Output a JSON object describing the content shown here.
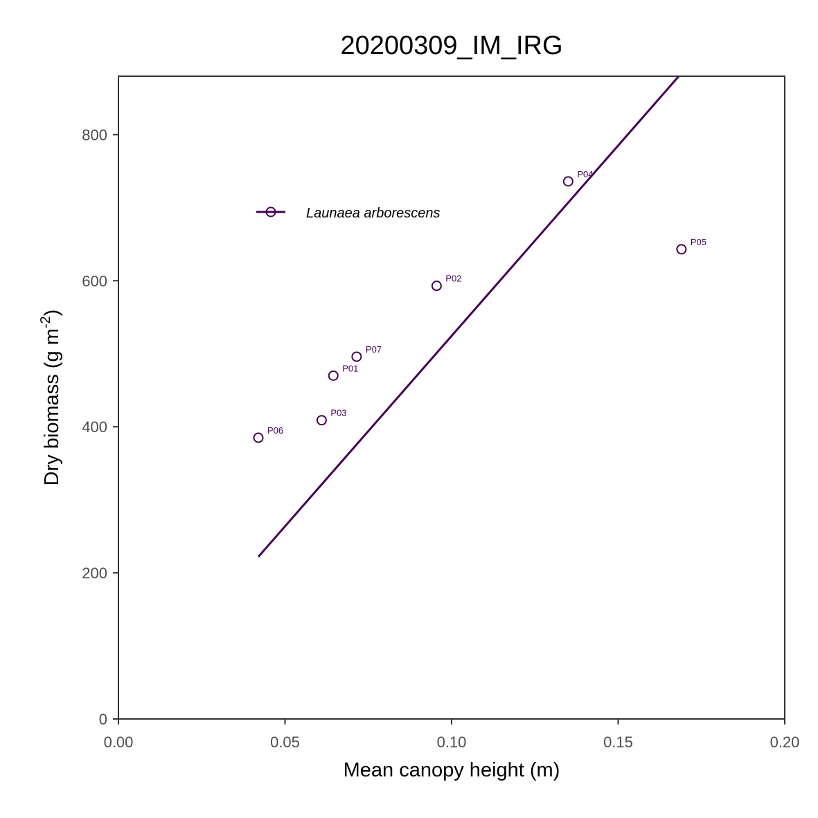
{
  "chart_data": {
    "type": "scatter",
    "title": "20200309_IM_IRG",
    "xlabel": "Mean canopy height (m)",
    "ylabel": {
      "main": "Dry biomass (g m",
      "sup": "-2",
      "close": ")"
    },
    "xlim": [
      0.0,
      0.2
    ],
    "ylim": [
      0,
      880
    ],
    "x_ticks": [
      "0.00",
      "0.05",
      "0.10",
      "0.15",
      "0.20"
    ],
    "x_tick_values": [
      0.0,
      0.05,
      0.1,
      0.15,
      0.2
    ],
    "y_ticks": [
      "0",
      "200",
      "400",
      "600",
      "800"
    ],
    "y_tick_values": [
      0,
      200,
      400,
      600,
      800
    ],
    "grid": false,
    "legend_position": "top-left",
    "series": [
      {
        "name": "Launaea arborescens",
        "color": "#440154",
        "points": [
          {
            "label": "P01",
            "x": 0.0645,
            "y": 470
          },
          {
            "label": "P02",
            "x": 0.0955,
            "y": 593
          },
          {
            "label": "P03",
            "x": 0.061,
            "y": 409
          },
          {
            "label": "P04",
            "x": 0.135,
            "y": 736
          },
          {
            "label": "P05",
            "x": 0.169,
            "y": 643
          },
          {
            "label": "P06",
            "x": 0.042,
            "y": 385
          },
          {
            "label": "P07",
            "x": 0.0715,
            "y": 496
          }
        ],
        "fit_line": {
          "x": [
            0.042,
            0.1682
          ],
          "y": [
            222,
            880
          ]
        }
      }
    ]
  }
}
